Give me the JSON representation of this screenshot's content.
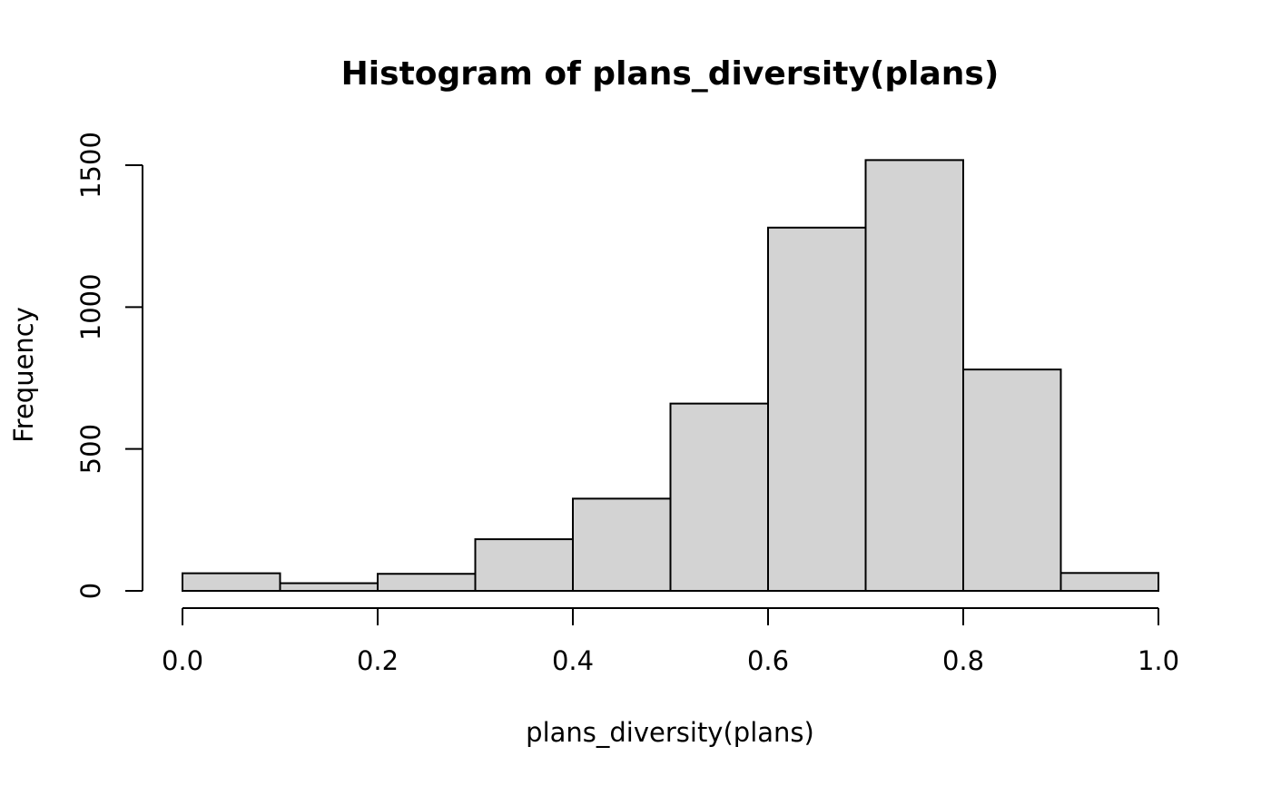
{
  "chart_data": {
    "type": "bar",
    "title": "Histogram of plans_diversity(plans)",
    "xlabel": "plans_diversity(plans)",
    "ylabel": "Frequency",
    "bin_edges": [
      0.0,
      0.1,
      0.2,
      0.3,
      0.4,
      0.5,
      0.6,
      0.7,
      0.8,
      0.9,
      1.0
    ],
    "values": [
      62,
      27,
      60,
      182,
      325,
      660,
      1280,
      1518,
      780,
      63
    ],
    "xlim": [
      0,
      1
    ],
    "ylim": [
      0,
      1500
    ],
    "x_ticks": [
      0.0,
      0.2,
      0.4,
      0.6,
      0.8,
      1.0
    ],
    "x_tick_labels": [
      "0.0",
      "0.2",
      "0.4",
      "0.6",
      "0.8",
      "1.0"
    ],
    "y_ticks": [
      0,
      500,
      1000,
      1500
    ],
    "y_tick_labels": [
      "0",
      "500",
      "1000",
      "1500"
    ],
    "bar_color": "#d3d3d3",
    "edge_color": "#000000",
    "grid": false
  }
}
